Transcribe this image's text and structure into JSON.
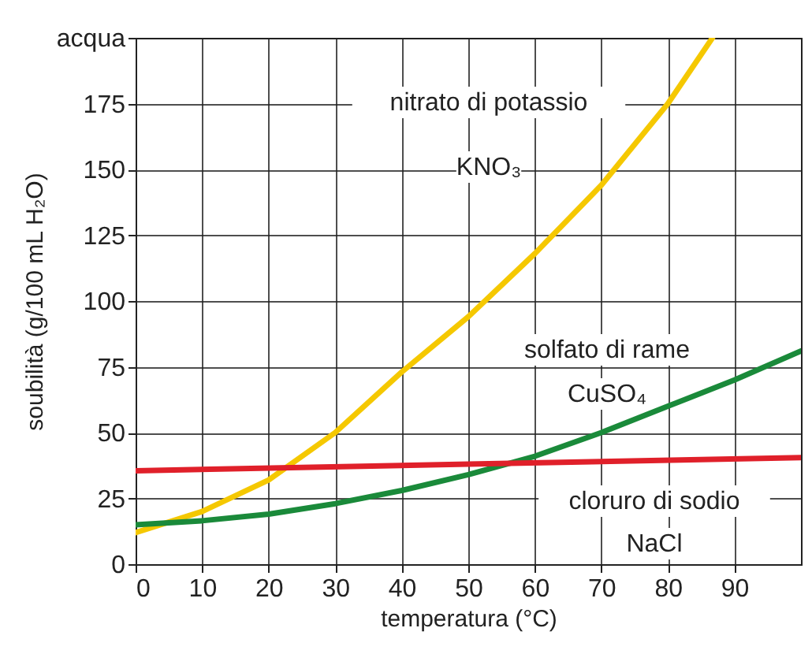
{
  "chart_data": {
    "type": "line",
    "xlabel": "temperatura (°C)",
    "ylabel": "soubilità (g/100 mL H₂O)",
    "xlim": [
      0,
      100
    ],
    "xticks": [
      0,
      10,
      20,
      30,
      40,
      50,
      60,
      70,
      80,
      90
    ],
    "ylim": [
      0,
      200
    ],
    "yticks": [
      0,
      25,
      50,
      75,
      100,
      125,
      150,
      175,
      {
        "value": 200,
        "label": "acqua"
      }
    ],
    "grid": true,
    "line_style": "solid",
    "series": [
      {
        "name": "nitrato di potassio KNO₃",
        "color": "#f5c800",
        "x": [
          0,
          10,
          20,
          30,
          40,
          50,
          60,
          70,
          80,
          86.7
        ],
        "values": [
          12,
          20,
          32,
          50,
          73,
          94,
          118,
          144,
          175,
          200
        ]
      },
      {
        "name": "solfato di rame CuSO₄",
        "color": "#1a8a3a",
        "x": [
          0,
          10,
          20,
          30,
          40,
          50,
          60,
          70,
          80,
          90,
          100
        ],
        "values": [
          15,
          16.5,
          19,
          23,
          28,
          34,
          41,
          50,
          60,
          70,
          81
        ]
      },
      {
        "name": "cloruro di sodio NaCl",
        "color": "#e0202a",
        "x": [
          0,
          50,
          100
        ],
        "values": [
          35.5,
          38,
          40.5
        ]
      }
    ]
  }
}
